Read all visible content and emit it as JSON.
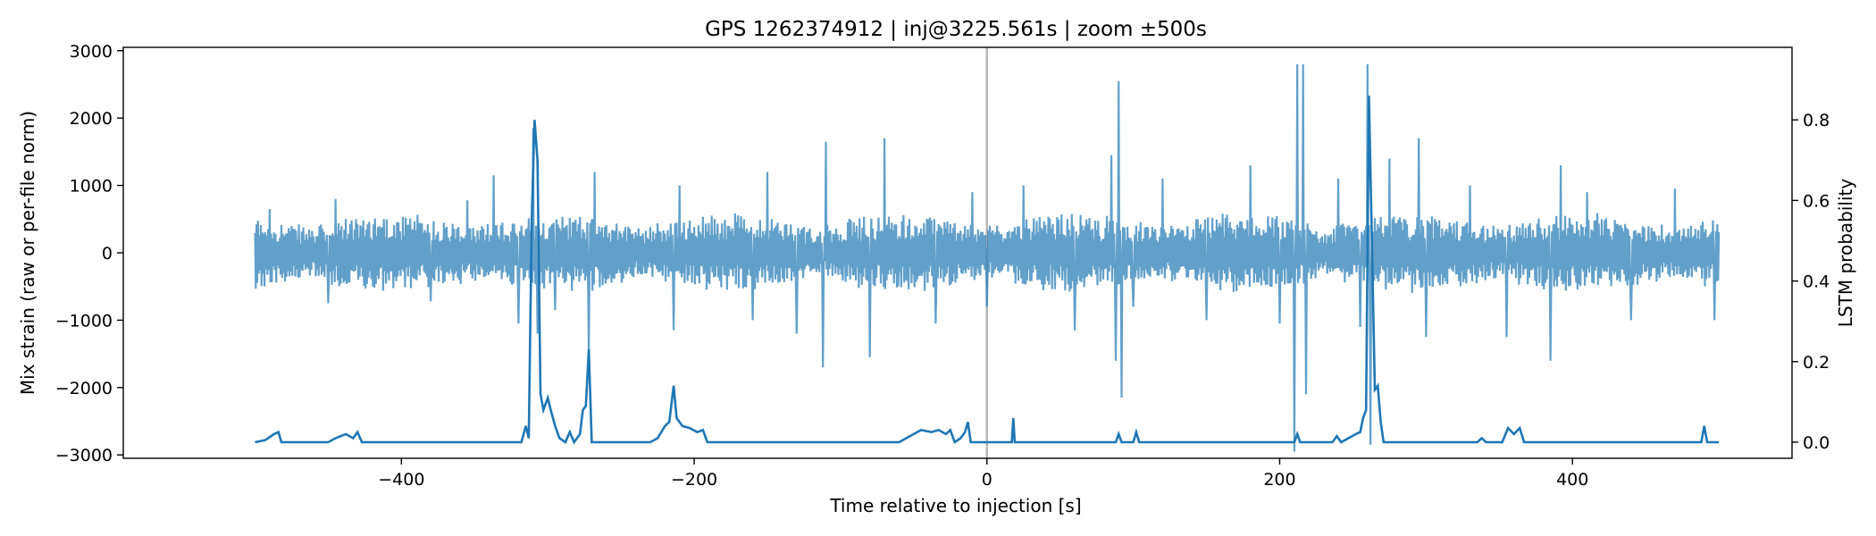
{
  "chart_data": {
    "type": "line",
    "title": "GPS 1262374912 | inj@3225.561s | zoom ±500s",
    "xlabel": "Time relative to injection [s]",
    "ylabel_left": "Mix strain (raw or per-file norm)",
    "ylabel_right": "LSTM probability",
    "xlim": [
      -590,
      550
    ],
    "ylim_left": [
      -3050,
      3050
    ],
    "ylim_right": [
      -0.04,
      0.98
    ],
    "xticks": [
      -400,
      -200,
      0,
      200,
      400
    ],
    "xtick_labels": [
      "−400",
      "−200",
      "0",
      "200",
      "400"
    ],
    "yticks_left": [
      -3000,
      -2000,
      -1000,
      0,
      1000,
      2000,
      3000
    ],
    "ytick_labels_left": [
      "−3000",
      "−2000",
      "−1000",
      "0",
      "1000",
      "2000",
      "3000"
    ],
    "yticks_right": [
      0.0,
      0.2,
      0.4,
      0.6,
      0.8
    ],
    "ytick_labels_right": [
      "0.0",
      "0.2",
      "0.4",
      "0.6",
      "0.8"
    ],
    "injection_marker_x": 0,
    "series": [
      {
        "name": "",
        "axis": "left",
        "color": "#1f77b4",
        "opacity": 0.7,
        "noise_amplitude": 420,
        "x_range": [
          -500,
          500
        ],
        "spikes": [
          {
            "x": -490,
            "y": 650
          },
          {
            "x": -450,
            "y": -750
          },
          {
            "x": -445,
            "y": 800
          },
          {
            "x": -380,
            "y": -720
          },
          {
            "x": -355,
            "y": 780
          },
          {
            "x": -337,
            "y": 1150
          },
          {
            "x": -320,
            "y": -1050
          },
          {
            "x": -310,
            "y": 1850
          },
          {
            "x": -307,
            "y": -1200
          },
          {
            "x": -295,
            "y": -850
          },
          {
            "x": -272,
            "y": -1500
          },
          {
            "x": -268,
            "y": 1200
          },
          {
            "x": -214,
            "y": -1150
          },
          {
            "x": -210,
            "y": 1000
          },
          {
            "x": -160,
            "y": -1000
          },
          {
            "x": -150,
            "y": 1200
          },
          {
            "x": -130,
            "y": -1200
          },
          {
            "x": -112,
            "y": -1700
          },
          {
            "x": -110,
            "y": 1650
          },
          {
            "x": -80,
            "y": -1550
          },
          {
            "x": -70,
            "y": 1700
          },
          {
            "x": -35,
            "y": -1050
          },
          {
            "x": -10,
            "y": 900
          },
          {
            "x": 0,
            "y": -800
          },
          {
            "x": 25,
            "y": 1000
          },
          {
            "x": 60,
            "y": -1150
          },
          {
            "x": 85,
            "y": 1450
          },
          {
            "x": 88,
            "y": -1600
          },
          {
            "x": 90,
            "y": 2550
          },
          {
            "x": 92,
            "y": -2150
          },
          {
            "x": 100,
            "y": -800
          },
          {
            "x": 120,
            "y": 1100
          },
          {
            "x": 150,
            "y": -1000
          },
          {
            "x": 180,
            "y": 1300
          },
          {
            "x": 200,
            "y": -1050
          },
          {
            "x": 210,
            "y": -2950
          },
          {
            "x": 212,
            "y": 2800
          },
          {
            "x": 216,
            "y": 2800
          },
          {
            "x": 218,
            "y": -2100
          },
          {
            "x": 240,
            "y": 1100
          },
          {
            "x": 255,
            "y": -1100
          },
          {
            "x": 260,
            "y": 2800
          },
          {
            "x": 262,
            "y": -2850
          },
          {
            "x": 275,
            "y": 1400
          },
          {
            "x": 295,
            "y": 1700
          },
          {
            "x": 300,
            "y": -1250
          },
          {
            "x": 330,
            "y": 1000
          },
          {
            "x": 355,
            "y": -1250
          },
          {
            "x": 385,
            "y": -1600
          },
          {
            "x": 392,
            "y": 1300
          },
          {
            "x": 410,
            "y": 900
          },
          {
            "x": 440,
            "y": -1000
          },
          {
            "x": 470,
            "y": 950
          },
          {
            "x": 497,
            "y": -1000
          }
        ]
      },
      {
        "name": "",
        "axis": "right",
        "color": "#1f77b4",
        "opacity": 1.0,
        "points": [
          [
            -500,
            0.0
          ],
          [
            -493,
            0.005
          ],
          [
            -487,
            0.02
          ],
          [
            -484,
            0.025
          ],
          [
            -482,
            0.0
          ],
          [
            -450,
            0.0
          ],
          [
            -445,
            0.01
          ],
          [
            -438,
            0.02
          ],
          [
            -433,
            0.01
          ],
          [
            -430,
            0.025
          ],
          [
            -427,
            0.0
          ],
          [
            -318,
            0.0
          ],
          [
            -315,
            0.04
          ],
          [
            -313,
            0.01
          ],
          [
            -311,
            0.55
          ],
          [
            -309,
            0.8
          ],
          [
            -307,
            0.7
          ],
          [
            -305,
            0.12
          ],
          [
            -303,
            0.08
          ],
          [
            -300,
            0.11
          ],
          [
            -298,
            0.08
          ],
          [
            -295,
            0.04
          ],
          [
            -292,
            0.01
          ],
          [
            -288,
            0.0
          ],
          [
            -285,
            0.025
          ],
          [
            -282,
            0.0
          ],
          [
            -278,
            0.02
          ],
          [
            -276,
            0.08
          ],
          [
            -274,
            0.09
          ],
          [
            -272,
            0.23
          ],
          [
            -270,
            0.0
          ],
          [
            -230,
            0.0
          ],
          [
            -225,
            0.01
          ],
          [
            -220,
            0.04
          ],
          [
            -217,
            0.05
          ],
          [
            -214,
            0.14
          ],
          [
            -212,
            0.06
          ],
          [
            -208,
            0.04
          ],
          [
            -203,
            0.035
          ],
          [
            -198,
            0.025
          ],
          [
            -194,
            0.03
          ],
          [
            -191,
            0.0
          ],
          [
            -60,
            0.0
          ],
          [
            -50,
            0.02
          ],
          [
            -45,
            0.03
          ],
          [
            -38,
            0.025
          ],
          [
            -33,
            0.03
          ],
          [
            -28,
            0.02
          ],
          [
            -25,
            0.03
          ],
          [
            -22,
            0.0
          ],
          [
            -18,
            0.01
          ],
          [
            -15,
            0.025
          ],
          [
            -13,
            0.05
          ],
          [
            -11,
            0.0
          ],
          [
            17,
            0.0
          ],
          [
            18,
            0.06
          ],
          [
            19,
            0.0
          ],
          [
            88,
            0.0
          ],
          [
            90,
            0.02
          ],
          [
            92,
            0.0
          ],
          [
            100,
            0.0
          ],
          [
            102,
            0.025
          ],
          [
            104,
            0.0
          ],
          [
            210,
            0.0
          ],
          [
            212,
            0.02
          ],
          [
            214,
            0.0
          ],
          [
            236,
            0.0
          ],
          [
            239,
            0.015
          ],
          [
            242,
            0.0
          ],
          [
            247,
            0.01
          ],
          [
            252,
            0.02
          ],
          [
            255,
            0.025
          ],
          [
            257,
            0.06
          ],
          [
            259,
            0.08
          ],
          [
            261,
            0.86
          ],
          [
            263,
            0.5
          ],
          [
            265,
            0.13
          ],
          [
            267,
            0.14
          ],
          [
            269,
            0.05
          ],
          [
            271,
            0.0
          ],
          [
            335,
            0.0
          ],
          [
            338,
            0.01
          ],
          [
            341,
            0.0
          ],
          [
            352,
            0.0
          ],
          [
            356,
            0.035
          ],
          [
            360,
            0.02
          ],
          [
            364,
            0.035
          ],
          [
            367,
            0.0
          ],
          [
            488,
            0.0
          ],
          [
            490,
            0.04
          ],
          [
            492,
            0.0
          ],
          [
            500,
            0.0
          ]
        ]
      }
    ]
  }
}
